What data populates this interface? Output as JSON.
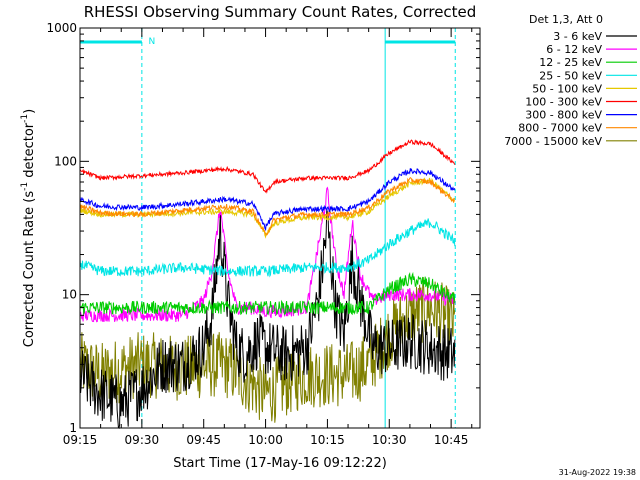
{
  "chart_data": {
    "type": "line",
    "title": "RHESSI Observing Summary Count Rates, Corrected",
    "xlabel": "Start Time (17-May-16 09:12:22)",
    "ylabel_main": "Corrected Count Rate (s",
    "ylabel_sup1": "-1",
    "ylabel_mid": " detector",
    "ylabel_sup2": "-1",
    "ylabel_end": ")",
    "y_scale": "log",
    "ylim": [
      1,
      1000
    ],
    "y_ticks": [
      1,
      10,
      100,
      1000
    ],
    "y_tick_labels": [
      "1",
      "10",
      "100",
      "1000"
    ],
    "xlim": [
      "09:15",
      "10:52"
    ],
    "x_ticks": [
      "09:15",
      "09:30",
      "09:45",
      "10:00",
      "10:15",
      "10:30",
      "10:45"
    ],
    "grid": false,
    "legend_title": "Det 1,3, Att 0",
    "legend_position": "right",
    "timestamp": "31-Aug-2022 19:38",
    "bar_marker": "N",
    "bars": [
      {
        "start": "09:15",
        "end": "09:30"
      },
      {
        "start": "10:29",
        "end": "10:46"
      }
    ],
    "vlines_solid": [
      "09:15",
      "10:29"
    ],
    "vlines_dashed": [
      "09:30",
      "10:46"
    ],
    "series": [
      {
        "name": "3 - 6 keV",
        "color": "#000000",
        "x": [
          "09:15",
          "09:20",
          "09:25",
          "09:30",
          "09:35",
          "09:40",
          "09:45",
          "09:47",
          "09:49",
          "09:51",
          "09:53",
          "09:55",
          "09:58",
          "10:00",
          "10:05",
          "10:10",
          "10:13",
          "10:15",
          "10:17",
          "10:19",
          "10:21",
          "10:23",
          "10:26",
          "10:30",
          "10:35",
          "10:40",
          "10:46"
        ],
        "values": [
          2.5,
          1.8,
          1.5,
          2.0,
          3.0,
          3.0,
          4.0,
          7.0,
          30,
          8.0,
          4.0,
          3.5,
          4.5,
          4.0,
          3.5,
          4.0,
          10,
          35,
          8.0,
          5.0,
          18,
          9.0,
          4.0,
          4.0,
          4.5,
          4.0,
          3.5
        ]
      },
      {
        "name": "6 - 12 keV",
        "color": "#ff00ff",
        "x": [
          "09:15",
          "09:30",
          "09:40",
          "09:45",
          "09:47",
          "09:49",
          "09:51",
          "09:53",
          "09:56",
          "10:00",
          "10:05",
          "10:10",
          "10:13",
          "10:15",
          "10:17",
          "10:19",
          "10:21",
          "10:23",
          "10:26",
          "10:30",
          "10:35",
          "10:40",
          "10:46"
        ],
        "values": [
          7,
          7,
          7,
          9,
          15,
          45,
          14,
          8,
          8,
          7.5,
          7.5,
          8,
          25,
          60,
          18,
          10,
          35,
          14,
          9,
          10,
          10,
          10,
          9
        ]
      },
      {
        "name": "12 - 25 keV",
        "color": "#00cc00",
        "x": [
          "09:15",
          "09:30",
          "09:45",
          "10:00",
          "10:15",
          "10:25",
          "10:30",
          "10:35",
          "10:40",
          "10:46"
        ],
        "values": [
          8,
          8,
          8,
          8,
          8,
          8,
          11,
          13,
          12,
          9
        ]
      },
      {
        "name": "25 - 50 keV",
        "color": "#00e5e5",
        "x": [
          "09:15",
          "09:20",
          "09:30",
          "09:40",
          "09:50",
          "10:00",
          "10:10",
          "10:20",
          "10:25",
          "10:30",
          "10:35",
          "10:40",
          "10:46"
        ],
        "values": [
          17,
          15,
          15,
          16,
          15,
          15,
          16,
          16,
          18,
          24,
          30,
          35,
          25
        ]
      },
      {
        "name": "50 - 100 keV",
        "color": "#e6c800",
        "x": [
          "09:15",
          "09:20",
          "09:30",
          "09:40",
          "09:50",
          "09:57",
          "10:00",
          "10:02",
          "10:05",
          "10:10",
          "10:20",
          "10:25",
          "10:30",
          "10:35",
          "10:40",
          "10:46"
        ],
        "values": [
          43,
          40,
          40,
          41,
          42,
          40,
          28,
          34,
          36,
          38,
          38,
          42,
          55,
          68,
          72,
          50
        ]
      },
      {
        "name": "100 - 300 keV",
        "color": "#ff0000",
        "x": [
          "09:15",
          "09:20",
          "09:30",
          "09:40",
          "09:50",
          "09:57",
          "10:00",
          "10:02",
          "10:05",
          "10:10",
          "10:20",
          "10:25",
          "10:30",
          "10:35",
          "10:40",
          "10:46"
        ],
        "values": [
          85,
          75,
          78,
          82,
          88,
          80,
          58,
          70,
          72,
          75,
          75,
          85,
          115,
          140,
          135,
          95
        ]
      },
      {
        "name": "300 - 800 keV",
        "color": "#0000ff",
        "x": [
          "09:15",
          "09:20",
          "09:30",
          "09:40",
          "09:50",
          "09:57",
          "10:00",
          "10:02",
          "10:05",
          "10:10",
          "10:20",
          "10:25",
          "10:30",
          "10:35",
          "10:40",
          "10:46"
        ],
        "values": [
          52,
          46,
          45,
          48,
          52,
          48,
          32,
          40,
          42,
          44,
          44,
          50,
          70,
          85,
          82,
          60
        ]
      },
      {
        "name": "800 - 7000 keV",
        "color": "#ff8800",
        "x": [
          "09:15",
          "09:20",
          "09:30",
          "09:40",
          "09:50",
          "09:57",
          "10:00",
          "10:02",
          "10:05",
          "10:10",
          "10:20",
          "10:25",
          "10:30",
          "10:35",
          "10:40",
          "10:46"
        ],
        "values": [
          46,
          41,
          40,
          43,
          46,
          42,
          28,
          36,
          38,
          40,
          40,
          45,
          60,
          72,
          70,
          50
        ]
      },
      {
        "name": "7000 - 15000 keV",
        "color": "#808000",
        "x": [
          "09:15",
          "09:20",
          "09:30",
          "09:40",
          "09:50",
          "10:00",
          "10:10",
          "10:20",
          "10:25",
          "10:30",
          "10:35",
          "10:40",
          "10:46"
        ],
        "values": [
          3.0,
          2.5,
          3.0,
          2.8,
          3.0,
          1.8,
          2.5,
          2.5,
          3.0,
          5.0,
          7.0,
          8.0,
          6.0
        ]
      }
    ]
  }
}
